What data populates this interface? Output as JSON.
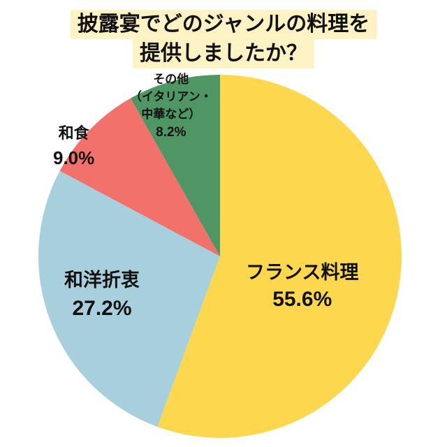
{
  "title": {
    "line1": "披露宴でどのジャンルの料理を",
    "line2": "提供しましたか？",
    "background": "#fdf2c4"
  },
  "chart_data": {
    "type": "pie",
    "title": "披露宴でどのジャンルの料理を提供しましたか？",
    "start_angle_deg": 0,
    "direction": "clockwise",
    "slices": [
      {
        "label": "フランス料理",
        "value": 55.6,
        "display": "55.6%",
        "color": "#fdd84e"
      },
      {
        "label": "和洋折衷",
        "value": 27.2,
        "display": "27.2%",
        "color": "#a7d0dc"
      },
      {
        "label": "和食",
        "value": 9.0,
        "display": "9.0%",
        "color": "#f2716a"
      },
      {
        "label": "その他（イタリアン・中華など）",
        "value": 8.2,
        "display": "8.2%",
        "color": "#4e9663"
      }
    ],
    "categories": [
      "フランス料理",
      "和洋折衷",
      "和食",
      "その他（イタリアン・中華など）"
    ],
    "values": [
      55.6,
      27.2,
      9.0,
      8.2
    ],
    "legend": "none (labels inside slices)"
  },
  "labels": {
    "french": {
      "name": "フランス料理",
      "pct": "55.6%"
    },
    "fusion": {
      "name": "和洋折衷",
      "pct": "27.2%"
    },
    "japanese": {
      "name": "和食",
      "pct": "9.0%"
    },
    "other": {
      "name1": "その他",
      "name2": "（イタリアン・",
      "name3": "中華など）",
      "pct": "8.2%"
    }
  }
}
